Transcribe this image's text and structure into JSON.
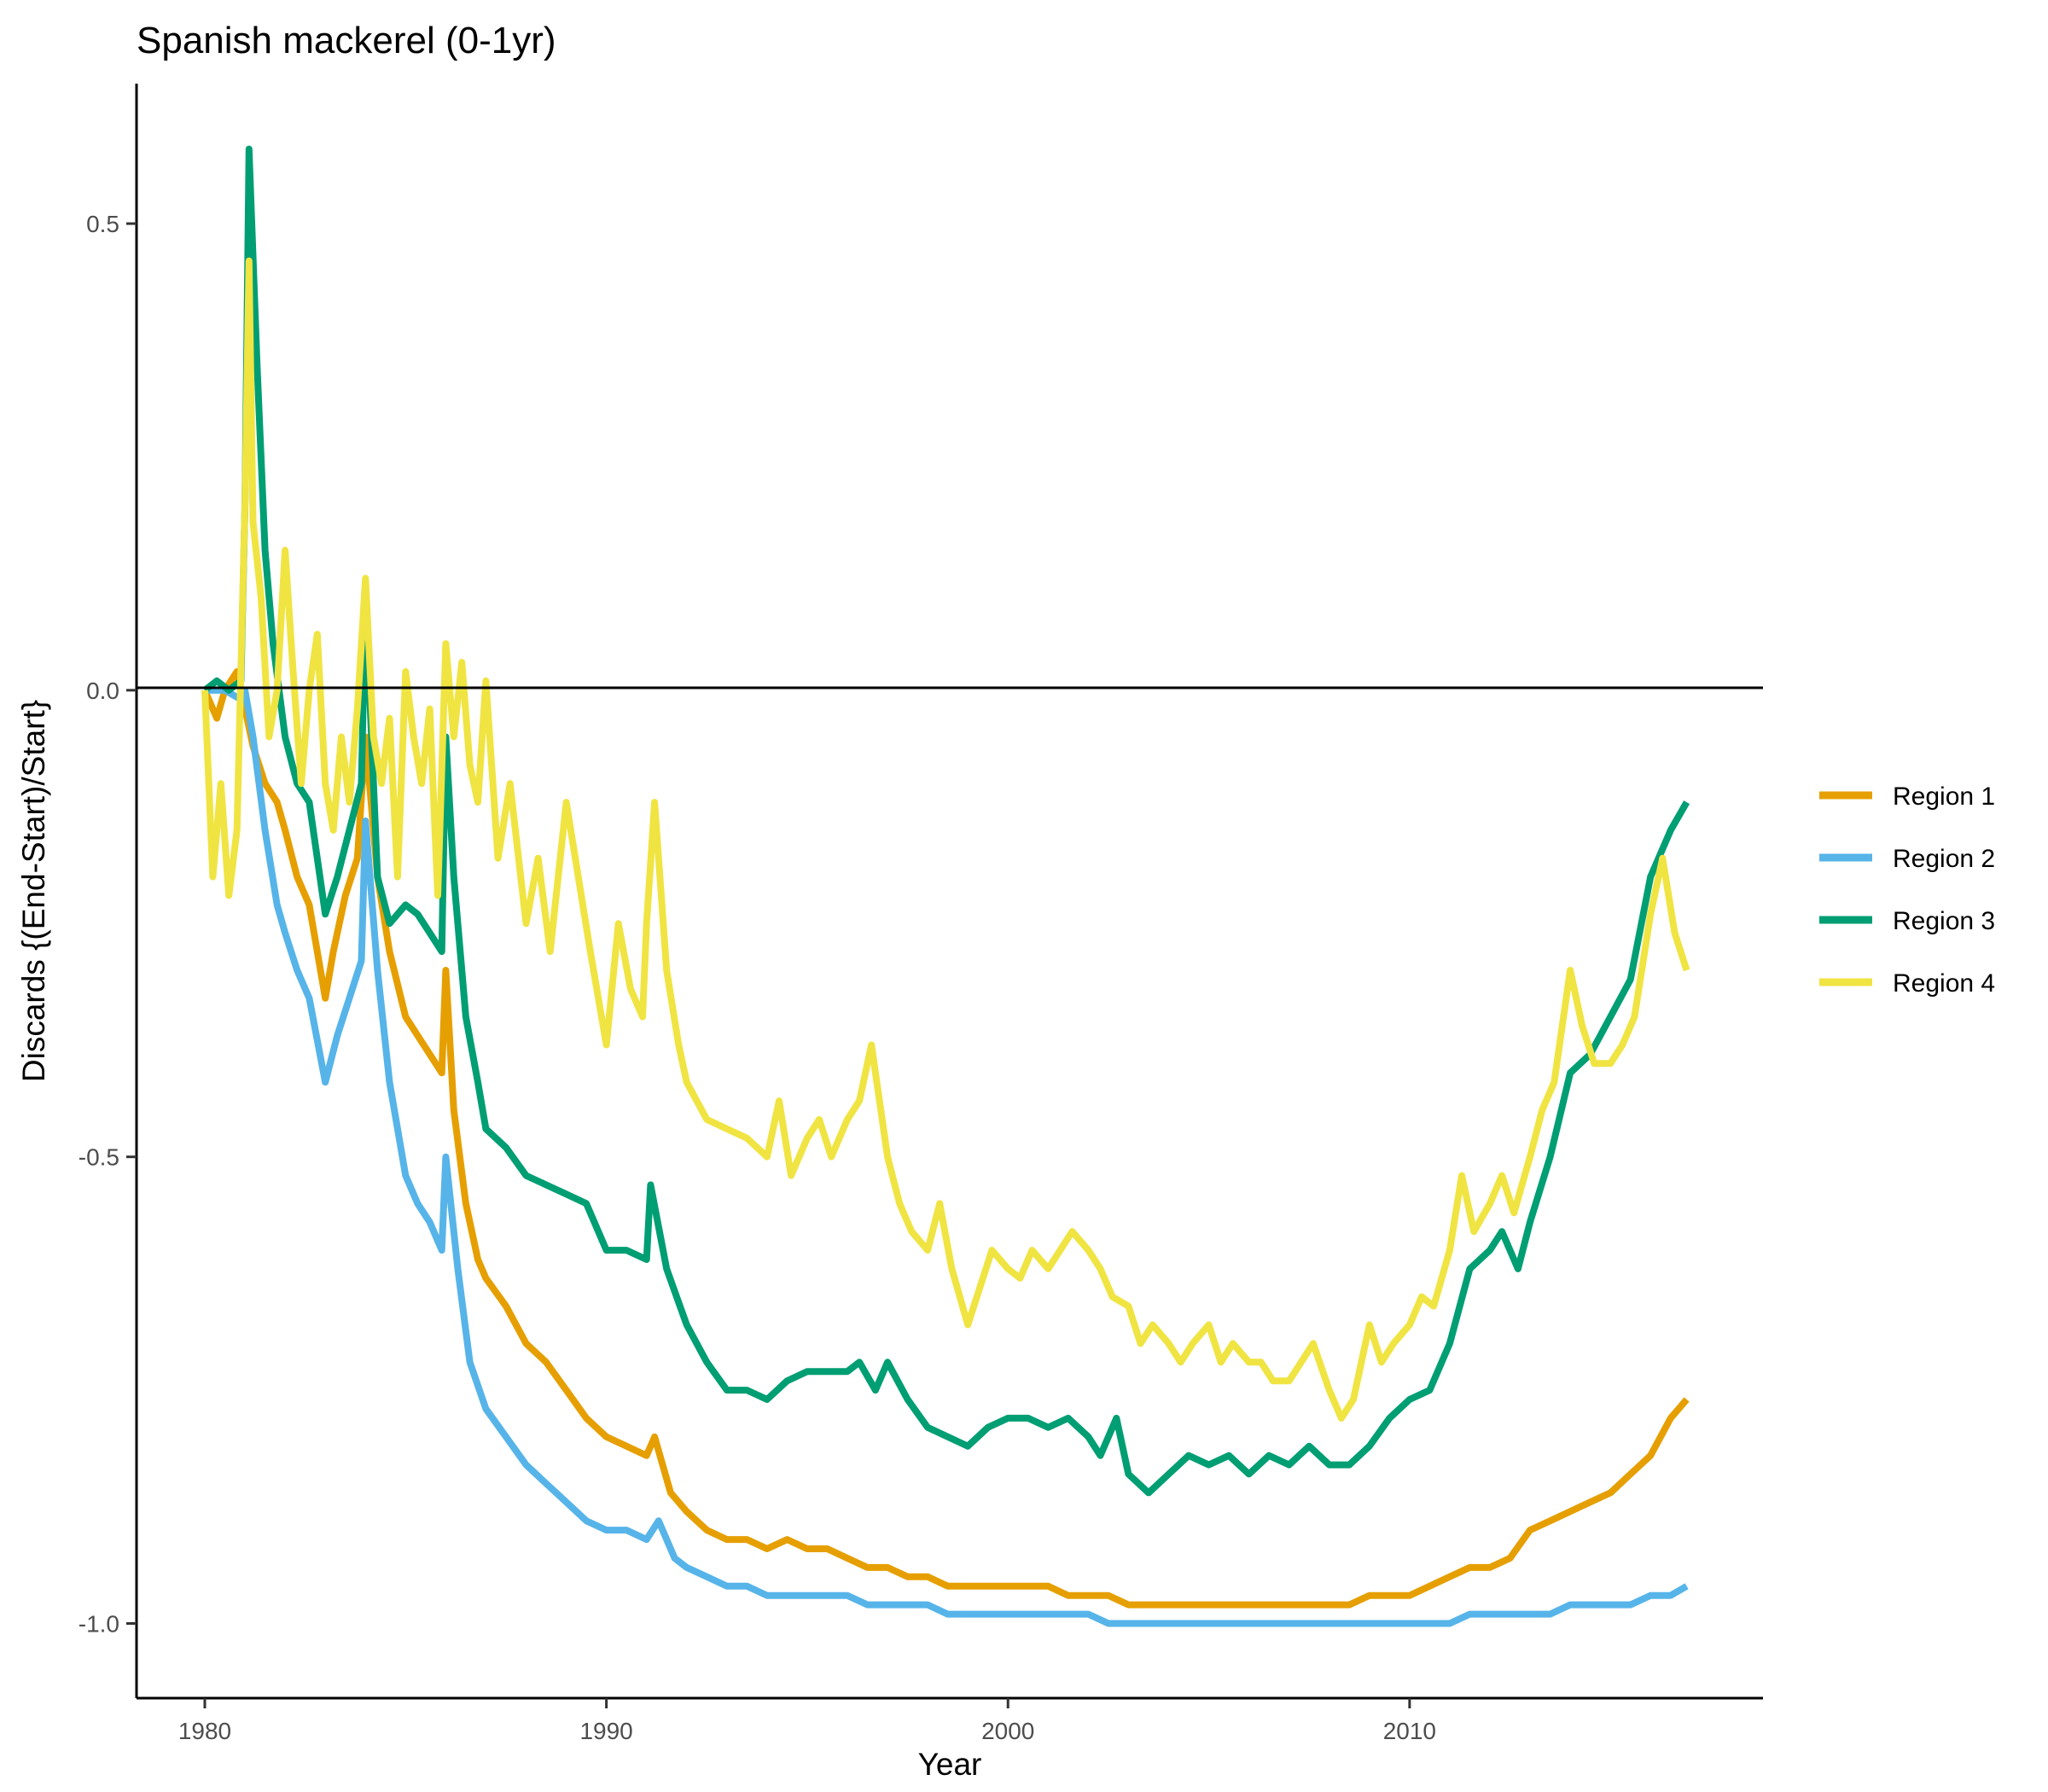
{
  "chart_data": {
    "type": "line",
    "title": "Spanish mackerel (0-1yr)",
    "xlabel": "Year",
    "ylabel": "Discards {(End-Start)/Start}",
    "xlim": [
      1978.3,
      2018.8
    ],
    "ylim": [
      -1.08,
      0.65
    ],
    "x_ticks": [
      1980,
      1990,
      2000,
      2010
    ],
    "x_tick_labels": [
      "1980",
      "1990",
      "2000",
      "2010"
    ],
    "y_ticks": [
      0.5,
      0.0,
      -0.5,
      -1.0
    ],
    "y_tick_labels": [
      "0.5",
      "0.0",
      "-0.5",
      "-1.0"
    ],
    "reference_line_y": 0,
    "grid": false,
    "legend_position": "right",
    "series": [
      {
        "name": "Region 1",
        "color": "#E69F00",
        "x": [
          1980.0,
          1980.3,
          1980.5,
          1980.8,
          1981.0,
          1981.2,
          1981.5,
          1981.8,
          1982.0,
          1982.3,
          1982.6,
          1983.0,
          1983.2,
          1983.5,
          1983.8,
          1984.0,
          1984.3,
          1984.6,
          1985.0,
          1985.3,
          1985.6,
          1985.9,
          1986.0,
          1986.2,
          1986.5,
          1986.8,
          1987.0,
          1987.5,
          1988.0,
          1988.5,
          1989.0,
          1989.5,
          1990.0,
          1990.5,
          1991.0,
          1991.2,
          1991.6,
          1992.0,
          1992.5,
          1993.0,
          1993.5,
          1994.0,
          1994.5,
          1995.0,
          1995.5,
          1996.0,
          1996.5,
          1997.0,
          1997.5,
          1998.0,
          1998.5,
          1999.0,
          1999.5,
          2000.0,
          2000.5,
          2001.0,
          2001.5,
          2002.0,
          2002.5,
          2003.0,
          2003.5,
          2004.0,
          2004.5,
          2005.0,
          2005.5,
          2006.0,
          2006.5,
          2007.0,
          2007.5,
          2008.0,
          2008.5,
          2009.0,
          2009.5,
          2010.0,
          2010.5,
          2011.0,
          2011.5,
          2012.0,
          2012.5,
          2013.0,
          2013.5,
          2014.0,
          2014.5,
          2015.0,
          2015.5,
          2016.0,
          2016.5,
          2016.9
        ],
        "values": [
          0.0,
          -0.03,
          0.0,
          0.02,
          -0.02,
          -0.06,
          -0.1,
          -0.12,
          -0.15,
          -0.2,
          -0.23,
          -0.33,
          -0.28,
          -0.22,
          -0.18,
          -0.05,
          -0.2,
          -0.28,
          -0.35,
          -0.37,
          -0.39,
          -0.41,
          -0.3,
          -0.45,
          -0.55,
          -0.61,
          -0.63,
          -0.66,
          -0.7,
          -0.72,
          -0.75,
          -0.78,
          -0.8,
          -0.81,
          -0.82,
          -0.8,
          -0.86,
          -0.88,
          -0.9,
          -0.91,
          -0.91,
          -0.92,
          -0.91,
          -0.92,
          -0.92,
          -0.93,
          -0.94,
          -0.94,
          -0.95,
          -0.95,
          -0.96,
          -0.96,
          -0.96,
          -0.96,
          -0.96,
          -0.96,
          -0.97,
          -0.97,
          -0.97,
          -0.98,
          -0.98,
          -0.98,
          -0.98,
          -0.98,
          -0.98,
          -0.98,
          -0.98,
          -0.98,
          -0.98,
          -0.98,
          -0.98,
          -0.97,
          -0.97,
          -0.97,
          -0.96,
          -0.95,
          -0.94,
          -0.94,
          -0.93,
          -0.9,
          -0.89,
          -0.88,
          -0.87,
          -0.86,
          -0.84,
          -0.82,
          -0.78,
          -0.76
        ]
      },
      {
        "name": "Region 2",
        "color": "#56B4E9",
        "x": [
          1980.0,
          1980.5,
          1980.9,
          1981.0,
          1981.2,
          1981.5,
          1981.8,
          1982.0,
          1982.3,
          1982.6,
          1983.0,
          1983.3,
          1983.6,
          1983.9,
          1984.0,
          1984.3,
          1984.6,
          1985.0,
          1985.3,
          1985.6,
          1985.9,
          1986.0,
          1986.3,
          1986.6,
          1987.0,
          1987.5,
          1988.0,
          1988.5,
          1989.0,
          1989.5,
          1990.0,
          1990.5,
          1991.0,
          1991.3,
          1991.7,
          1992.0,
          1992.5,
          1993.0,
          1993.5,
          1994.0,
          1994.5,
          1995.0,
          1995.5,
          1996.0,
          1996.5,
          1997.0,
          1997.5,
          1998.0,
          1998.5,
          1999.0,
          1999.5,
          2000.0,
          2000.5,
          2001.0,
          2001.5,
          2002.0,
          2002.5,
          2003.0,
          2003.5,
          2004.0,
          2004.5,
          2005.0,
          2005.5,
          2006.0,
          2006.5,
          2007.0,
          2007.5,
          2008.0,
          2008.5,
          2009.0,
          2009.5,
          2010.0,
          2010.5,
          2011.0,
          2011.5,
          2012.0,
          2012.5,
          2013.0,
          2013.5,
          2014.0,
          2014.5,
          2015.0,
          2015.5,
          2016.0,
          2016.5,
          2016.9
        ],
        "values": [
          0.0,
          0.0,
          -0.01,
          0.0,
          -0.05,
          -0.15,
          -0.23,
          -0.26,
          -0.3,
          -0.33,
          -0.42,
          -0.37,
          -0.33,
          -0.29,
          -0.14,
          -0.3,
          -0.42,
          -0.52,
          -0.55,
          -0.57,
          -0.6,
          -0.5,
          -0.62,
          -0.72,
          -0.77,
          -0.8,
          -0.83,
          -0.85,
          -0.87,
          -0.89,
          -0.9,
          -0.9,
          -0.91,
          -0.89,
          -0.93,
          -0.94,
          -0.95,
          -0.96,
          -0.96,
          -0.97,
          -0.97,
          -0.97,
          -0.97,
          -0.97,
          -0.98,
          -0.98,
          -0.98,
          -0.98,
          -0.99,
          -0.99,
          -0.99,
          -0.99,
          -0.99,
          -0.99,
          -0.99,
          -0.99,
          -1.0,
          -1.0,
          -1.0,
          -1.0,
          -1.0,
          -1.0,
          -1.0,
          -1.0,
          -1.0,
          -1.0,
          -1.0,
          -1.0,
          -1.0,
          -1.0,
          -1.0,
          -1.0,
          -1.0,
          -1.0,
          -0.99,
          -0.99,
          -0.99,
          -0.99,
          -0.99,
          -0.98,
          -0.98,
          -0.98,
          -0.98,
          -0.97,
          -0.97,
          -0.96
        ]
      },
      {
        "name": "Region 3",
        "color": "#009E73",
        "x": [
          1980.0,
          1980.3,
          1980.6,
          1980.9,
          1981.0,
          1981.1,
          1981.3,
          1981.5,
          1981.7,
          1982.0,
          1982.3,
          1982.6,
          1983.0,
          1983.3,
          1983.6,
          1983.9,
          1984.0,
          1984.3,
          1984.6,
          1985.0,
          1985.3,
          1985.6,
          1985.9,
          1986.0,
          1986.2,
          1986.5,
          1986.8,
          1987.0,
          1987.5,
          1988.0,
          1988.5,
          1989.0,
          1989.5,
          1990.0,
          1990.5,
          1991.0,
          1991.1,
          1991.5,
          1992.0,
          1992.5,
          1993.0,
          1993.5,
          1994.0,
          1994.5,
          1995.0,
          1995.5,
          1996.0,
          1996.3,
          1996.7,
          1997.0,
          1997.5,
          1998.0,
          1998.5,
          1999.0,
          1999.5,
          2000.0,
          2000.5,
          2001.0,
          2001.5,
          2002.0,
          2002.3,
          2002.7,
          2003.0,
          2003.5,
          2004.0,
          2004.5,
          2005.0,
          2005.5,
          2006.0,
          2006.5,
          2007.0,
          2007.5,
          2008.0,
          2008.5,
          2009.0,
          2009.5,
          2010.0,
          2010.5,
          2011.0,
          2011.5,
          2012.0,
          2012.3,
          2012.7,
          2013.0,
          2013.5,
          2014.0,
          2014.5,
          2015.0,
          2015.5,
          2016.0,
          2016.5,
          2016.9
        ],
        "values": [
          0.0,
          0.01,
          0.0,
          0.01,
          0.2,
          0.58,
          0.35,
          0.15,
          0.05,
          -0.05,
          -0.1,
          -0.12,
          -0.24,
          -0.2,
          -0.15,
          -0.1,
          0.1,
          -0.2,
          -0.25,
          -0.23,
          -0.24,
          -0.26,
          -0.28,
          -0.05,
          -0.2,
          -0.35,
          -0.42,
          -0.47,
          -0.49,
          -0.52,
          -0.53,
          -0.54,
          -0.55,
          -0.6,
          -0.6,
          -0.61,
          -0.53,
          -0.62,
          -0.68,
          -0.72,
          -0.75,
          -0.75,
          -0.76,
          -0.74,
          -0.73,
          -0.73,
          -0.73,
          -0.72,
          -0.75,
          -0.72,
          -0.76,
          -0.79,
          -0.8,
          -0.81,
          -0.79,
          -0.78,
          -0.78,
          -0.79,
          -0.78,
          -0.8,
          -0.82,
          -0.78,
          -0.84,
          -0.86,
          -0.84,
          -0.82,
          -0.83,
          -0.82,
          -0.84,
          -0.82,
          -0.83,
          -0.81,
          -0.83,
          -0.83,
          -0.81,
          -0.78,
          -0.76,
          -0.75,
          -0.7,
          -0.62,
          -0.6,
          -0.58,
          -0.62,
          -0.57,
          -0.5,
          -0.41,
          -0.39,
          -0.35,
          -0.31,
          -0.2,
          -0.15,
          -0.12
        ]
      },
      {
        "name": "Region 4",
        "color": "#F0E442",
        "x": [
          1980.0,
          1980.2,
          1980.4,
          1980.6,
          1980.8,
          1981.0,
          1981.1,
          1981.2,
          1981.4,
          1981.6,
          1981.8,
          1982.0,
          1982.2,
          1982.4,
          1982.6,
          1982.8,
          1983.0,
          1983.2,
          1983.4,
          1983.6,
          1983.8,
          1984.0,
          1984.2,
          1984.4,
          1984.6,
          1984.8,
          1985.0,
          1985.2,
          1985.4,
          1985.6,
          1985.8,
          1986.0,
          1986.2,
          1986.4,
          1986.6,
          1986.8,
          1987.0,
          1987.3,
          1987.6,
          1988.0,
          1988.3,
          1988.6,
          1989.0,
          1989.3,
          1989.6,
          1990.0,
          1990.3,
          1990.6,
          1990.9,
          1991.0,
          1991.2,
          1991.5,
          1991.8,
          1992.0,
          1992.5,
          1993.0,
          1993.5,
          1994.0,
          1994.3,
          1994.6,
          1995.0,
          1995.3,
          1995.6,
          1996.0,
          1996.3,
          1996.6,
          1997.0,
          1997.3,
          1997.6,
          1998.0,
          1998.3,
          1998.6,
          1999.0,
          1999.3,
          1999.6,
          2000.0,
          2000.3,
          2000.6,
          2001.0,
          2001.3,
          2001.6,
          2002.0,
          2002.3,
          2002.6,
          2003.0,
          2003.3,
          2003.6,
          2004.0,
          2004.3,
          2004.6,
          2005.0,
          2005.3,
          2005.6,
          2006.0,
          2006.3,
          2006.6,
          2007.0,
          2007.3,
          2007.6,
          2008.0,
          2008.3,
          2008.6,
          2009.0,
          2009.3,
          2009.6,
          2010.0,
          2010.3,
          2010.6,
          2011.0,
          2011.3,
          2011.6,
          2012.0,
          2012.3,
          2012.6,
          2013.0,
          2013.3,
          2013.6,
          2014.0,
          2014.3,
          2014.6,
          2015.0,
          2015.3,
          2015.6,
          2016.0,
          2016.3,
          2016.6,
          2016.9
        ],
        "values": [
          0.0,
          -0.2,
          -0.1,
          -0.22,
          -0.15,
          0.2,
          0.46,
          0.18,
          0.1,
          -0.05,
          0.0,
          0.15,
          0.02,
          -0.1,
          0.0,
          0.06,
          -0.1,
          -0.15,
          -0.05,
          -0.12,
          -0.02,
          0.12,
          -0.05,
          -0.1,
          -0.03,
          -0.2,
          0.02,
          -0.05,
          -0.1,
          -0.02,
          -0.22,
          0.05,
          -0.05,
          0.03,
          -0.08,
          -0.12,
          0.01,
          -0.18,
          -0.1,
          -0.25,
          -0.18,
          -0.28,
          -0.12,
          -0.2,
          -0.28,
          -0.38,
          -0.25,
          -0.32,
          -0.35,
          -0.25,
          -0.12,
          -0.3,
          -0.38,
          -0.42,
          -0.46,
          -0.47,
          -0.48,
          -0.5,
          -0.44,
          -0.52,
          -0.48,
          -0.46,
          -0.5,
          -0.46,
          -0.44,
          -0.38,
          -0.5,
          -0.55,
          -0.58,
          -0.6,
          -0.55,
          -0.62,
          -0.68,
          -0.64,
          -0.6,
          -0.62,
          -0.63,
          -0.6,
          -0.62,
          -0.6,
          -0.58,
          -0.6,
          -0.62,
          -0.65,
          -0.66,
          -0.7,
          -0.68,
          -0.7,
          -0.72,
          -0.7,
          -0.68,
          -0.72,
          -0.7,
          -0.72,
          -0.72,
          -0.74,
          -0.74,
          -0.72,
          -0.7,
          -0.75,
          -0.78,
          -0.76,
          -0.68,
          -0.72,
          -0.7,
          -0.68,
          -0.65,
          -0.66,
          -0.6,
          -0.52,
          -0.58,
          -0.55,
          -0.52,
          -0.56,
          -0.5,
          -0.45,
          -0.42,
          -0.3,
          -0.36,
          -0.4,
          -0.4,
          -0.38,
          -0.35,
          -0.24,
          -0.18,
          -0.26,
          -0.3
        ]
      }
    ]
  }
}
